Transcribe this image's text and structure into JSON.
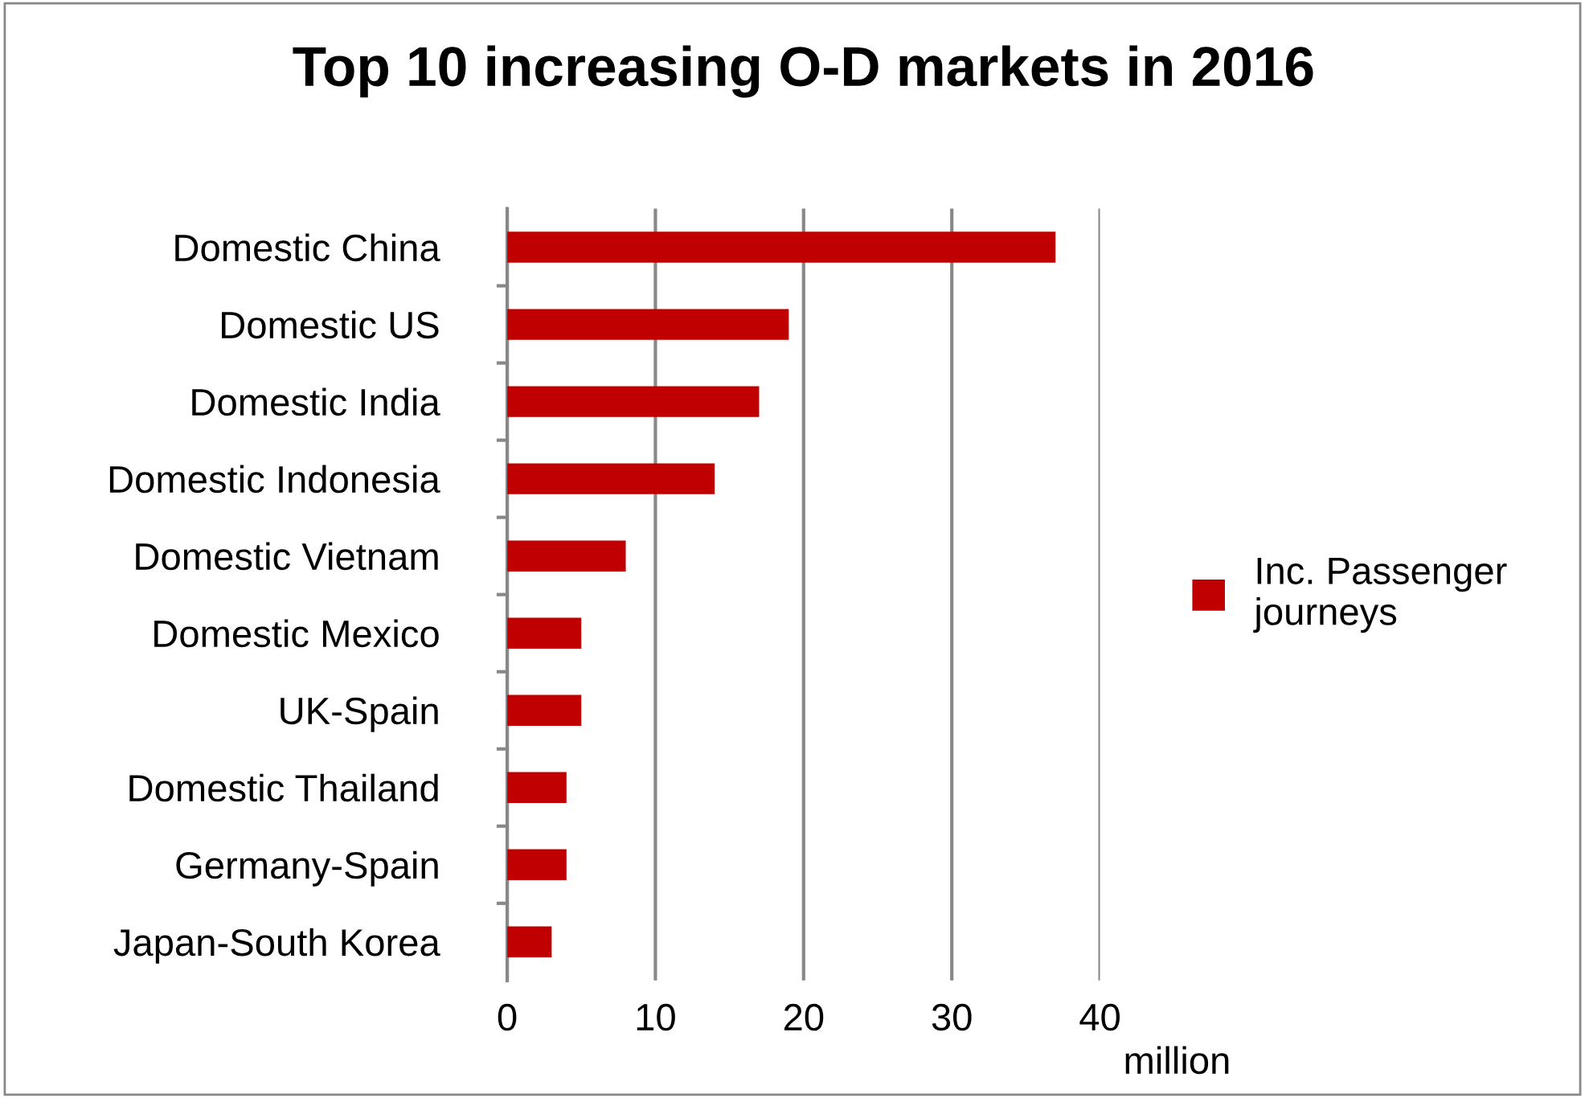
{
  "chart_data": {
    "type": "bar",
    "orientation": "horizontal",
    "title": "Top 10 increasing O-D markets in 2016",
    "xlabel": "million",
    "categories": [
      "Domestic China",
      "Domestic US",
      "Domestic India",
      "Domestic Indonesia",
      "Domestic Vietnam",
      "Domestic Mexico",
      "UK-Spain",
      "Domestic Thailand",
      "Germany-Spain",
      "Japan-South Korea"
    ],
    "series": [
      {
        "name": "Inc. Passenger\njourneys",
        "color": "#c00000",
        "values": [
          37,
          19,
          17,
          14,
          8,
          5,
          5,
          4,
          4,
          3
        ]
      }
    ],
    "xlim": [
      0,
      40
    ],
    "xticks": [
      0,
      10,
      20,
      30,
      40
    ],
    "grid": "x",
    "legend": "right"
  }
}
